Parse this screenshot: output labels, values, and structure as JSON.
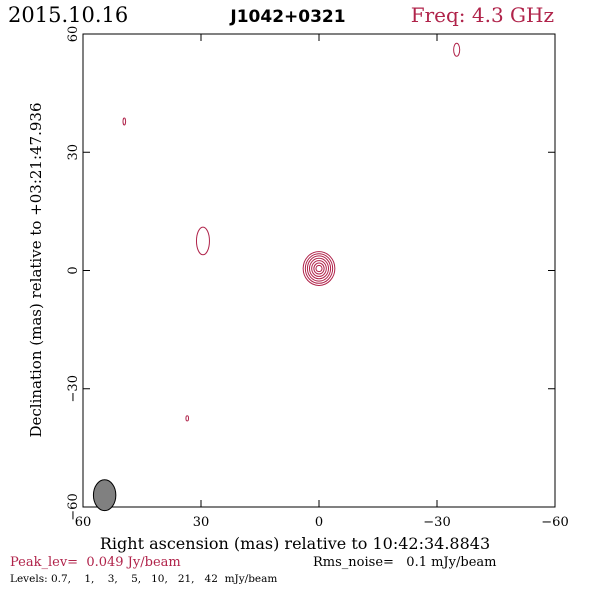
{
  "header": {
    "date": "2015.10.16",
    "source": "J1042+0321",
    "freq": "Freq: 4.3 GHz"
  },
  "footer": {
    "peak": "Peak_lev=  0.049 Jy/beam",
    "rms": "Rms_noise=   0.1 mJy/beam",
    "levels": "Levels: 0.7,    1,    3,    5,   10,   21,   42  mJy/beam"
  },
  "colors": {
    "contour": "#b0234a",
    "accent_text": "#b0234a",
    "axis": "#000000",
    "beam_fill": "#808080"
  },
  "chart_data": {
    "type": "contour",
    "title": "J1042+0321",
    "xlabel": "Right ascension (mas) relative to 10:42:34.8843",
    "ylabel": "Declination (mas) relative to +03:21:47.936",
    "xlim": [
      60,
      -60
    ],
    "ylim": [
      -60,
      60
    ],
    "x_ticks": [
      60,
      30,
      0,
      -30,
      -60
    ],
    "y_ticks": [
      -60,
      -30,
      0,
      30,
      60
    ],
    "x_tick_labels": [
      "60",
      "30",
      "0",
      "−30",
      "−60"
    ],
    "y_tick_labels": [
      "−60",
      "−30",
      "0",
      "30",
      "60"
    ],
    "levels_mJy_per_beam": [
      0.7,
      1,
      3,
      5,
      10,
      21,
      42
    ],
    "peak_Jy_per_beam": 0.049,
    "rms_noise_mJy_per_beam": 0.1,
    "main_component": {
      "ra_mas": 0,
      "dec_mas": 0.5,
      "contour_semi_axes_mas": [
        [
          1.3,
          4.3
        ],
        [
          1.12,
          3.75
        ],
        [
          0.95,
          3.2
        ],
        [
          0.78,
          2.6
        ],
        [
          0.6,
          2.0
        ],
        [
          0.42,
          1.4
        ],
        [
          0.25,
          0.8
        ]
      ]
    },
    "weak_features": [
      {
        "ra_mas": 29.5,
        "dec_mas": 7.5,
        "semi_axes_mas": [
          0.75,
          1.6
        ]
      },
      {
        "ra_mas": -35.0,
        "dec_mas": 56.0,
        "semi_axes_mas": [
          0.35,
          0.75
        ]
      },
      {
        "ra_mas": 49.5,
        "dec_mas": 37.8,
        "semi_axes_mas": [
          0.15,
          0.4
        ]
      },
      {
        "ra_mas": 33.5,
        "dec_mas": -37.5,
        "semi_axes_mas": [
          0.15,
          0.3
        ]
      }
    ],
    "beam": {
      "ra_mas": 54.5,
      "dec_mas": -57.0,
      "semi_axes_mas": [
        0.75,
        1.7
      ]
    }
  }
}
